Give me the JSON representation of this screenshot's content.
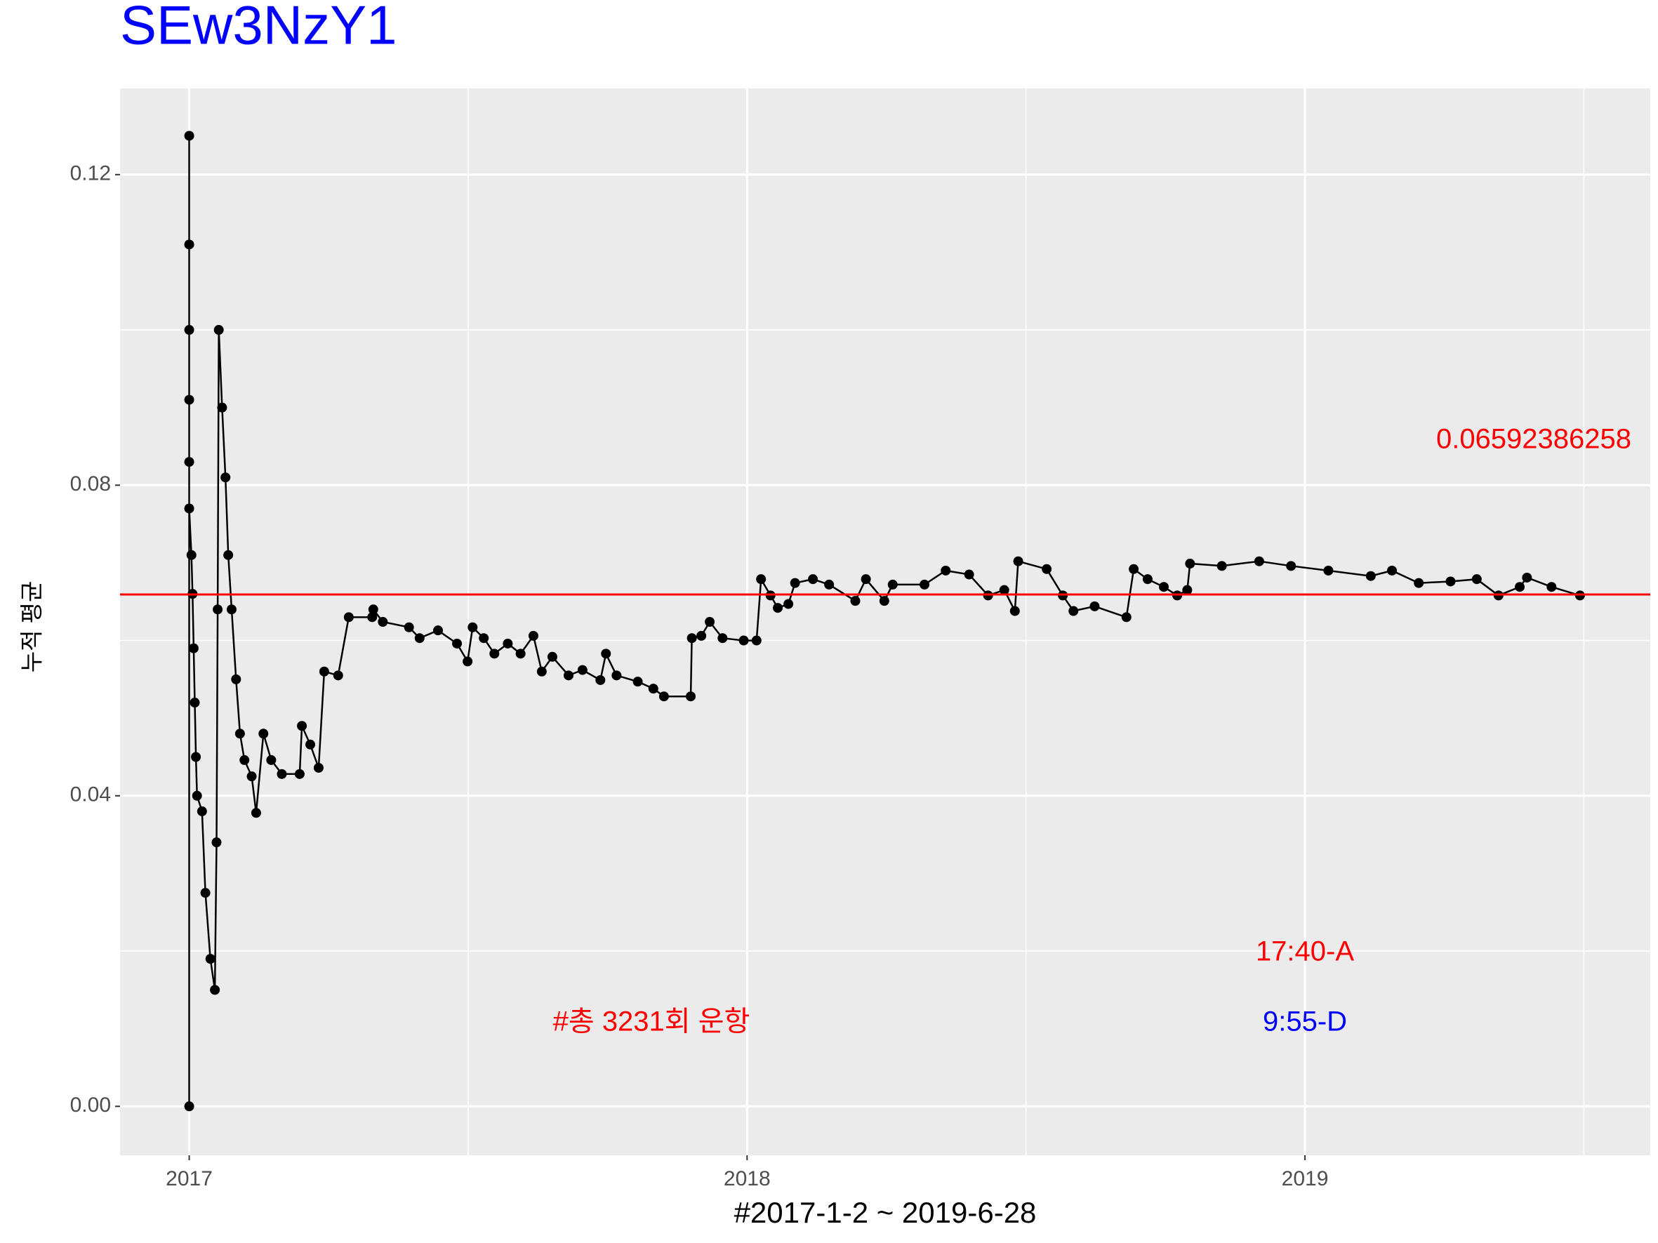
{
  "chart_data": {
    "type": "line",
    "title": "SEw3NzY1",
    "x_label": "#2017-1-2 ~ 2019-6-28",
    "y_label": "누적 평균",
    "xlim": [
      2016.876,
      2019.619
    ],
    "xticks": [
      2017,
      2018,
      2019
    ],
    "xminor": [
      2017.5,
      2018.5,
      2019.5
    ],
    "ylim": [
      -0.0063,
      0.1311
    ],
    "yticks": [
      {
        "value": 0,
        "label": "0.00"
      },
      0.04,
      0.08,
      0.12
    ],
    "yminor": [
      0.02,
      0.06,
      0.1
    ],
    "grid": true,
    "markers": true,
    "series": [
      {
        "color": "#000000",
        "x": [
          2017.0,
          2017.0,
          2017.0,
          2017.0,
          2017.0,
          2017.0,
          2017.0,
          2017.004,
          2017.006,
          2017.008,
          2017.01,
          2017.012,
          2017.014,
          2017.023,
          2017.029,
          2017.038,
          2017.046,
          2017.049,
          2017.051,
          2017.053,
          2017.059,
          2017.065,
          2017.07,
          2017.076,
          2017.084,
          2017.091,
          2017.099,
          2017.112,
          2017.12,
          2017.133,
          2017.147,
          2017.166,
          2017.198,
          2017.202,
          2017.217,
          2017.232,
          2017.242,
          2017.267,
          2017.286,
          2017.328,
          2017.33,
          2017.347,
          2017.394,
          2017.413,
          2017.446,
          2017.48,
          2017.499,
          2017.508,
          2017.528,
          2017.547,
          2017.571,
          2017.594,
          2017.617,
          2017.632,
          2017.651,
          2017.68,
          2017.705,
          2017.737,
          2017.747,
          2017.766,
          2017.804,
          2017.832,
          2017.851,
          2017.899,
          2017.901,
          2017.918,
          2017.933,
          2017.956,
          2017.994,
          2018.017,
          2018.025,
          2018.042,
          2018.055,
          2018.074,
          2018.086,
          2018.118,
          2018.147,
          2018.194,
          2018.213,
          2018.246,
          2018.261,
          2018.318,
          2018.356,
          2018.398,
          2018.432,
          2018.461,
          2018.48,
          2018.486,
          2018.537,
          2018.566,
          2018.585,
          2018.623,
          2018.68,
          2018.693,
          2018.718,
          2018.747,
          2018.771,
          2018.789,
          2018.794,
          2018.851,
          2018.918,
          2018.975,
          2019.042,
          2019.118,
          2019.156,
          2019.204,
          2019.261,
          2019.308,
          2019.347,
          2019.385,
          2019.398,
          2019.442,
          2019.493
        ],
        "values": [
          0,
          0.125,
          0.111,
          0.1,
          0.091,
          0.083,
          0.077,
          0.071,
          0.066,
          0.059,
          0.052,
          0.045,
          0.04,
          0.038,
          0.0275,
          0.019,
          0.015,
          0.034,
          0.064,
          0.1,
          0.09,
          0.081,
          0.071,
          0.064,
          0.055,
          0.048,
          0.0446,
          0.0425,
          0.0378,
          0.048,
          0.0446,
          0.0428,
          0.0428,
          0.049,
          0.0466,
          0.0436,
          0.056,
          0.0555,
          0.063,
          0.063,
          0.064,
          0.0624,
          0.0617,
          0.0603,
          0.0613,
          0.0596,
          0.0573,
          0.0617,
          0.0603,
          0.0583,
          0.0596,
          0.0583,
          0.0606,
          0.056,
          0.0579,
          0.0555,
          0.0562,
          0.0549,
          0.0583,
          0.0555,
          0.0547,
          0.0538,
          0.0528,
          0.0528,
          0.0603,
          0.0606,
          0.0624,
          0.0603,
          0.06,
          0.06,
          0.0679,
          0.0658,
          0.0642,
          0.0647,
          0.0674,
          0.0679,
          0.0672,
          0.0651,
          0.0679,
          0.0651,
          0.0672,
          0.0672,
          0.069,
          0.0685,
          0.0658,
          0.0665,
          0.0638,
          0.0702,
          0.0692,
          0.0658,
          0.0638,
          0.0644,
          0.063,
          0.0692,
          0.0679,
          0.0669,
          0.0658,
          0.0665,
          0.0699,
          0.0696,
          0.0702,
          0.0696,
          0.069,
          0.0683,
          0.069,
          0.0674,
          0.0676,
          0.0679,
          0.0658,
          0.0669,
          0.0681,
          0.0669,
          0.0658
        ]
      }
    ],
    "hline": {
      "value": 0.06592386258,
      "color": "#ff0000"
    },
    "annotations": [
      {
        "text": "17:40-A",
        "color": "#ff0000"
      },
      {
        "text": "9:55-D",
        "color": "#0000ff"
      },
      {
        "text": "#총 3231회 운항",
        "color": "#ff0000"
      }
    ],
    "title_color": "#0000ff"
  }
}
